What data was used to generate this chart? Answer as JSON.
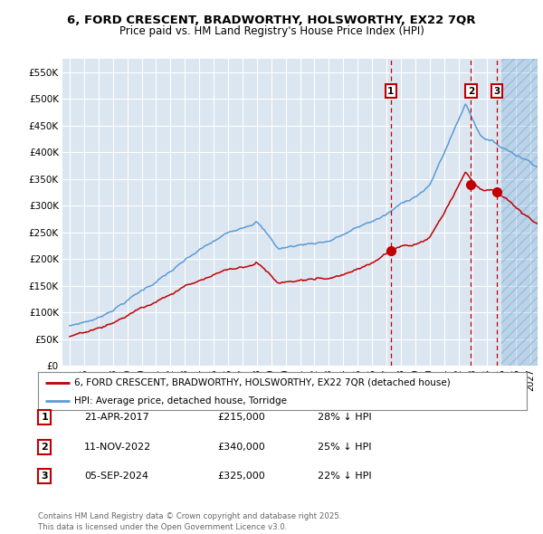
{
  "title_line1": "6, FORD CRESCENT, BRADWORTHY, HOLSWORTHY, EX22 7QR",
  "title_line2": "Price paid vs. HM Land Registry's House Price Index (HPI)",
  "ylim": [
    0,
    575000
  ],
  "yticks": [
    0,
    50000,
    100000,
    150000,
    200000,
    250000,
    300000,
    350000,
    400000,
    450000,
    500000,
    550000
  ],
  "ytick_labels": [
    "£0",
    "£50K",
    "£100K",
    "£150K",
    "£200K",
    "£250K",
    "£300K",
    "£350K",
    "£400K",
    "£450K",
    "£500K",
    "£550K"
  ],
  "xlim_start": 1994.5,
  "xlim_end": 2027.5,
  "hpi_color": "#5b9bd5",
  "price_color": "#c00000",
  "bg_color": "#dce6f1",
  "grid_color": "#ffffff",
  "transaction_dates": [
    2017.31,
    2022.87,
    2024.68
  ],
  "transaction_prices": [
    215000,
    340000,
    325000
  ],
  "transaction_labels": [
    "1",
    "2",
    "3"
  ],
  "legend_label_price": "6, FORD CRESCENT, BRADWORTHY, HOLSWORTHY, EX22 7QR (detached house)",
  "legend_label_hpi": "HPI: Average price, detached house, Torridge",
  "table_data": [
    [
      "1",
      "21-APR-2017",
      "£215,000",
      "28% ↓ HPI"
    ],
    [
      "2",
      "11-NOV-2022",
      "£340,000",
      "25% ↓ HPI"
    ],
    [
      "3",
      "05-SEP-2024",
      "£325,000",
      "22% ↓ HPI"
    ]
  ],
  "footer_text": "Contains HM Land Registry data © Crown copyright and database right 2025.\nThis data is licensed under the Open Government Licence v3.0.",
  "future_start": 2025.0
}
